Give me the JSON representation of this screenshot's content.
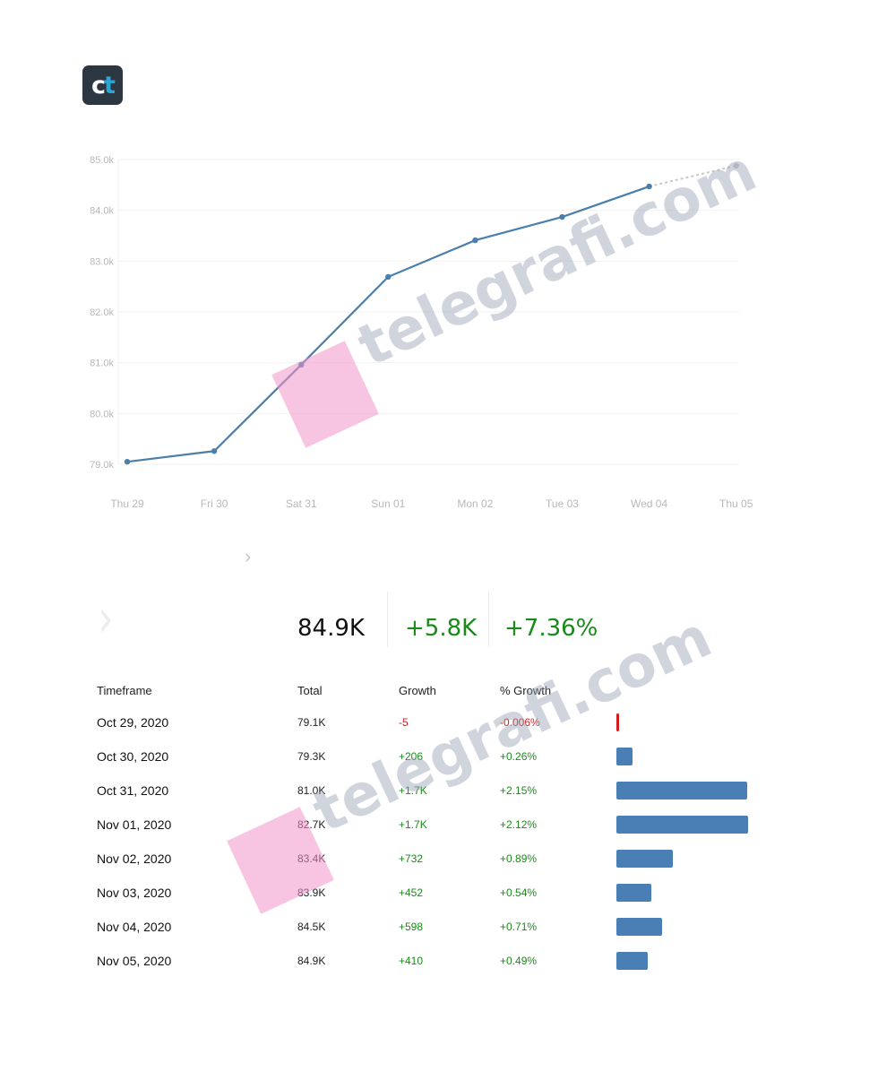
{
  "logo": {
    "text_c": "c",
    "text_t": "t"
  },
  "watermark": "telegrafi.com",
  "chart_data": {
    "type": "line",
    "x": [
      "Thu 29",
      "Fri 30",
      "Sat 31",
      "Sun 01",
      "Mon 02",
      "Tue 03",
      "Wed 04",
      "Thu 05"
    ],
    "series": [
      {
        "values": [
          79.05,
          79.26,
          80.96,
          82.69,
          83.41,
          83.87,
          84.47,
          84.88
        ]
      }
    ],
    "projected_from_index": 6,
    "y_ticks": [
      "79.0k",
      "80.0k",
      "81.0k",
      "82.0k",
      "83.0k",
      "84.0k",
      "85.0k"
    ],
    "ylim": [
      79.0,
      85.0
    ],
    "y_unit": "k",
    "grid": true,
    "line_color": "#4a7fab",
    "projection_color": "#c8c8c8"
  },
  "summary": {
    "total": "84.9K",
    "growth": "+5.8K",
    "pct_growth": "+7.36%"
  },
  "table": {
    "headers": [
      "Timeframe",
      "Total",
      "Growth",
      "% Growth"
    ],
    "rows": [
      {
        "date": "Oct 29, 2020",
        "total": "79.1K",
        "growth": "-5",
        "pct": "-0.006%",
        "bar": -5
      },
      {
        "date": "Oct 30, 2020",
        "total": "79.3K",
        "growth": "+206",
        "pct": "+0.26%",
        "bar": 206
      },
      {
        "date": "Oct 31, 2020",
        "total": "81.0K",
        "growth": "+1.7K",
        "pct": "+2.15%",
        "bar": 1700
      },
      {
        "date": "Nov 01, 2020",
        "total": "82.7K",
        "growth": "+1.7K",
        "pct": "+2.12%",
        "bar": 1710
      },
      {
        "date": "Nov 02, 2020",
        "total": "83.4K",
        "growth": "+732",
        "pct": "+0.89%",
        "bar": 732
      },
      {
        "date": "Nov 03, 2020",
        "total": "83.9K",
        "growth": "+452",
        "pct": "+0.54%",
        "bar": 452
      },
      {
        "date": "Nov 04, 2020",
        "total": "84.5K",
        "growth": "+598",
        "pct": "+0.71%",
        "bar": 598
      },
      {
        "date": "Nov 05, 2020",
        "total": "84.9K",
        "growth": "+410",
        "pct": "+0.49%",
        "bar": 410
      }
    ],
    "bar_colors": {
      "positive": "#4a7fb5",
      "negative": "#d21d1d"
    }
  }
}
